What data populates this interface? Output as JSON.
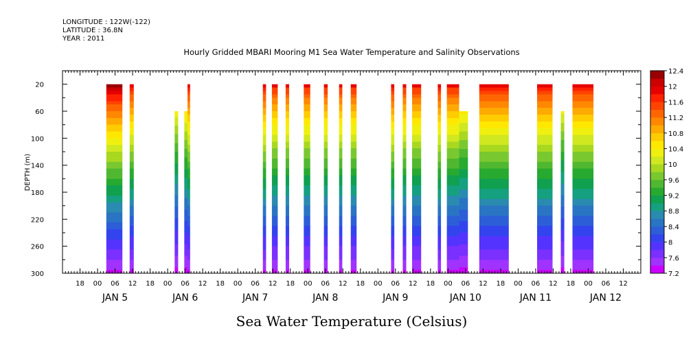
{
  "header": {
    "longitude": "LONGITUDE : 122W(-122)",
    "latitude": "LATITUDE : 36.8N",
    "year": "YEAR : 2011"
  },
  "chart_data": {
    "type": "heatmap",
    "title": "Hourly Gridded MBARI Mooring M1 Sea Water Temperature and Salinity Observations",
    "xlabel": "Sea Water Temperature (Celsius)",
    "ylabel": "DEPTH (m)",
    "ylim": [
      300,
      0
    ],
    "xlim_hours": [
      -12,
      186
    ],
    "y_ticks": [
      20,
      60,
      100,
      140,
      180,
      220,
      260,
      300
    ],
    "x_hour_labels": [
      "18",
      "00",
      "06",
      "12",
      "18",
      "00",
      "06",
      "12",
      "18",
      "00",
      "06",
      "12",
      "18",
      "00",
      "06",
      "12",
      "18",
      "00",
      "06",
      "12",
      "18",
      "00",
      "06",
      "12",
      "18",
      "00",
      "06",
      "12",
      "18",
      "00",
      "06",
      "12"
    ],
    "x_day_labels": [
      {
        "label": "JAN  5",
        "hour": 6
      },
      {
        "label": "JAN  6",
        "hour": 30
      },
      {
        "label": "JAN  7",
        "hour": 54
      },
      {
        "label": "JAN  8",
        "hour": 78
      },
      {
        "label": "JAN  9",
        "hour": 102
      },
      {
        "label": "JAN 10",
        "hour": 126
      },
      {
        "label": "JAN 11",
        "hour": 150
      },
      {
        "label": "JAN 12",
        "hour": 174
      }
    ],
    "colorbar": {
      "levels": [
        7.2,
        7.4,
        7.6,
        7.8,
        8,
        8.2,
        8.4,
        8.6,
        8.8,
        9,
        9.2,
        9.4,
        9.6,
        9.8,
        10,
        10.2,
        10.4,
        10.6,
        10.8,
        11,
        11.2,
        11.4,
        11.6,
        11.8,
        12,
        12.2,
        12.4
      ],
      "labels": [
        "7.2",
        "7.6",
        "8",
        "8.4",
        "8.8",
        "9.2",
        "9.6",
        "10",
        "10.4",
        "10.8",
        "11.2",
        "11.6",
        "12",
        "12.4"
      ],
      "colors": [
        "#cc00ff",
        "#a033ff",
        "#7a30ff",
        "#5533ff",
        "#3344ee",
        "#2c5ed8",
        "#2a74c4",
        "#2a8ab0",
        "#15a080",
        "#10a050",
        "#28aa30",
        "#50b830",
        "#7ac830",
        "#a8d820",
        "#d0e820",
        "#f0f010",
        "#ffe800",
        "#ffcc00",
        "#ffaa00",
        "#ff8800",
        "#ff6600",
        "#ff4400",
        "#ff2200",
        "#e60000",
        "#cc0000",
        "#990000"
      ]
    },
    "data_note": "Temperature field: warmest near surface, cooling with depth; hourly observation blocks with gaps",
    "blocks": [
      {
        "start": 3,
        "end": 8.5,
        "top": 20,
        "surf": 12.3
      },
      {
        "start": 11,
        "end": 12.4,
        "top": 20,
        "surf": 11.9
      },
      {
        "start": 26.4,
        "end": 27.6,
        "top": 60,
        "surf": 11.2
      },
      {
        "start": 29.7,
        "end": 30.8,
        "top": 60,
        "surf": 11.4
      },
      {
        "start": 30.8,
        "end": 31.7,
        "top": 20,
        "surf": 11.9
      },
      {
        "start": 56.6,
        "end": 57.7,
        "top": 20,
        "surf": 11.9
      },
      {
        "start": 59.7,
        "end": 61.7,
        "top": 20,
        "surf": 11.8
      },
      {
        "start": 64.4,
        "end": 65.6,
        "top": 20,
        "surf": 11.8
      },
      {
        "start": 70.6,
        "end": 72.8,
        "top": 20,
        "surf": 11.8
      },
      {
        "start": 77.5,
        "end": 78.8,
        "top": 20,
        "surf": 11.8
      },
      {
        "start": 82.7,
        "end": 83.8,
        "top": 20,
        "surf": 11.8
      },
      {
        "start": 86.7,
        "end": 88.7,
        "top": 20,
        "surf": 11.8
      },
      {
        "start": 100.5,
        "end": 101.6,
        "top": 20,
        "surf": 11.9
      },
      {
        "start": 104.5,
        "end": 105.7,
        "top": 20,
        "surf": 11.8
      },
      {
        "start": 107.7,
        "end": 110.8,
        "top": 20,
        "surf": 11.8
      },
      {
        "start": 116.5,
        "end": 117.6,
        "top": 20,
        "surf": 11.9
      },
      {
        "start": 119.6,
        "end": 123.8,
        "top": 20,
        "surf": 11.8
      },
      {
        "start": 123.8,
        "end": 126.8,
        "top": 60,
        "surf": 11.4
      },
      {
        "start": 130.7,
        "end": 140.8,
        "top": 20,
        "surf": 11.9
      },
      {
        "start": 150.5,
        "end": 155.8,
        "top": 20,
        "surf": 11.9
      },
      {
        "start": 158.6,
        "end": 159.8,
        "top": 60,
        "surf": 11.1
      },
      {
        "start": 162.6,
        "end": 169.8,
        "top": 20,
        "surf": 11.9
      }
    ]
  }
}
